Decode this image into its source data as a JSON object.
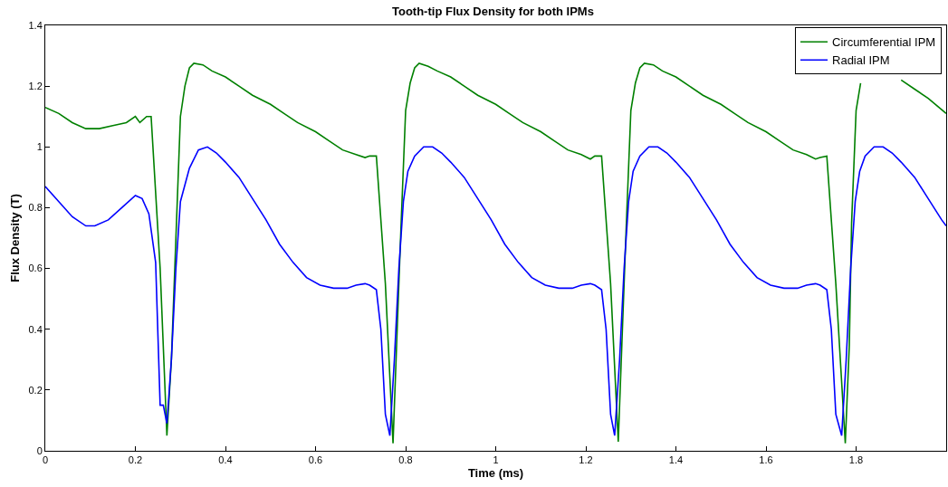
{
  "chart_data": {
    "type": "line",
    "title": "Tooth-tip Flux Density for both IPMs",
    "xlabel": "Time (ms)",
    "ylabel": "Flux Density (T)",
    "xlim": [
      0,
      2
    ],
    "xticks": [
      0,
      0.2,
      0.4,
      0.6,
      0.8,
      1,
      1.2,
      1.4,
      1.6,
      1.8
    ],
    "ylim": [
      0,
      1.4
    ],
    "yticks": [
      0,
      0.2,
      0.4,
      0.6,
      0.8,
      1,
      1.2,
      1.4
    ],
    "legend": "top right",
    "marker": "none",
    "line_style": "solid",
    "series": [
      {
        "name": "Circumferential IPM",
        "color": "#008000",
        "x": [
          0,
          0.03,
          0.06,
          0.09,
          0.12,
          0.15,
          0.18,
          0.2,
          0.21,
          0.225,
          0.235,
          0.255,
          0.27,
          0.28,
          0.29,
          0.3,
          0.31,
          0.32,
          0.33,
          0.35,
          0.37,
          0.4,
          0.43,
          0.46,
          0.5,
          0.53,
          0.56,
          0.6,
          0.63,
          0.66,
          0.69,
          0.71,
          0.72,
          0.735,
          0.755,
          0.772,
          0.78,
          0.79,
          0.8,
          0.81,
          0.82,
          0.83,
          0.85,
          0.87,
          0.9,
          0.93,
          0.96,
          1.0,
          1.03,
          1.06,
          1.1,
          1.13,
          1.16,
          1.19,
          1.21,
          1.22,
          1.235,
          1.255,
          1.272,
          1.28,
          1.29,
          1.3,
          1.31,
          1.32,
          1.33,
          1.35,
          1.37,
          1.4,
          1.43,
          1.46,
          1.5,
          1.53,
          1.56,
          1.6,
          1.63,
          1.66,
          1.69,
          1.71,
          1.72,
          1.735,
          1.755,
          1.776,
          1.785,
          1.79,
          1.8,
          1.81,
          1.82,
          1.83,
          1.85,
          1.87,
          1.9,
          1.93,
          1.96,
          2.0
        ],
        "values": [
          1.13,
          1.11,
          1.08,
          1.06,
          1.06,
          1.07,
          1.08,
          1.1,
          1.08,
          1.1,
          1.1,
          0.6,
          0.05,
          0.3,
          0.7,
          1.1,
          1.2,
          1.26,
          1.275,
          1.27,
          1.25,
          1.23,
          1.2,
          1.17,
          1.14,
          1.11,
          1.08,
          1.05,
          1.02,
          0.99,
          0.975,
          0.965,
          0.97,
          0.97,
          0.55,
          0.025,
          0.35,
          0.75,
          1.12,
          1.21,
          1.26,
          1.275,
          1.265,
          1.25,
          1.23,
          1.2,
          1.17,
          1.14,
          1.11,
          1.08,
          1.05,
          1.02,
          0.99,
          0.975,
          0.96,
          0.97,
          0.97,
          0.55,
          0.03,
          0.35,
          0.75,
          1.12,
          1.21,
          1.26,
          1.275,
          1.27,
          1.25,
          1.23,
          1.2,
          1.17,
          1.14,
          1.11,
          1.08,
          1.05,
          1.02,
          0.99,
          0.975,
          0.96,
          0.965,
          0.97,
          0.55,
          0.025,
          0.35,
          0.75,
          1.12,
          1.21,
          null,
          null,
          null,
          null,
          1.22,
          1.19,
          1.16,
          1.11
        ]
      },
      {
        "name": "Radial IPM",
        "color": "#0000ff",
        "x": [
          0,
          0.03,
          0.06,
          0.09,
          0.11,
          0.14,
          0.17,
          0.2,
          0.215,
          0.23,
          0.245,
          0.255,
          0.262,
          0.27,
          0.28,
          0.29,
          0.3,
          0.32,
          0.34,
          0.36,
          0.38,
          0.4,
          0.43,
          0.46,
          0.49,
          0.52,
          0.55,
          0.58,
          0.61,
          0.64,
          0.67,
          0.69,
          0.71,
          0.72,
          0.735,
          0.745,
          0.755,
          0.765,
          0.775,
          0.785,
          0.795,
          0.805,
          0.82,
          0.84,
          0.86,
          0.88,
          0.9,
          0.93,
          0.96,
          0.99,
          1.02,
          1.05,
          1.08,
          1.11,
          1.14,
          1.17,
          1.19,
          1.21,
          1.22,
          1.235,
          1.245,
          1.255,
          1.264,
          1.275,
          1.285,
          1.295,
          1.305,
          1.32,
          1.34,
          1.36,
          1.38,
          1.4,
          1.43,
          1.46,
          1.49,
          1.52,
          1.55,
          1.58,
          1.61,
          1.64,
          1.67,
          1.69,
          1.71,
          1.72,
          1.735,
          1.745,
          1.755,
          1.768,
          1.778,
          1.788,
          1.798,
          1.808,
          1.82,
          1.84,
          1.86,
          1.88,
          1.9,
          1.93,
          1.96,
          1.99,
          2.0
        ],
        "values": [
          0.87,
          0.82,
          0.77,
          0.74,
          0.74,
          0.76,
          0.8,
          0.84,
          0.83,
          0.78,
          0.62,
          0.15,
          0.15,
          0.09,
          0.3,
          0.6,
          0.82,
          0.93,
          0.99,
          1.0,
          0.98,
          0.95,
          0.9,
          0.83,
          0.76,
          0.68,
          0.62,
          0.57,
          0.545,
          0.535,
          0.535,
          0.545,
          0.55,
          0.545,
          0.53,
          0.4,
          0.12,
          0.05,
          0.3,
          0.6,
          0.82,
          0.92,
          0.97,
          1.0,
          1.0,
          0.98,
          0.95,
          0.9,
          0.83,
          0.76,
          0.68,
          0.62,
          0.57,
          0.545,
          0.535,
          0.535,
          0.545,
          0.55,
          0.545,
          0.53,
          0.4,
          0.12,
          0.05,
          0.3,
          0.6,
          0.82,
          0.92,
          0.97,
          1.0,
          1.0,
          0.98,
          0.95,
          0.9,
          0.83,
          0.76,
          0.68,
          0.62,
          0.57,
          0.545,
          0.535,
          0.535,
          0.545,
          0.55,
          0.545,
          0.53,
          0.4,
          0.12,
          0.05,
          0.3,
          0.6,
          0.82,
          0.92,
          0.97,
          1.0,
          1.0,
          0.98,
          0.95,
          0.9,
          0.83,
          0.76,
          0.74
        ]
      }
    ]
  }
}
